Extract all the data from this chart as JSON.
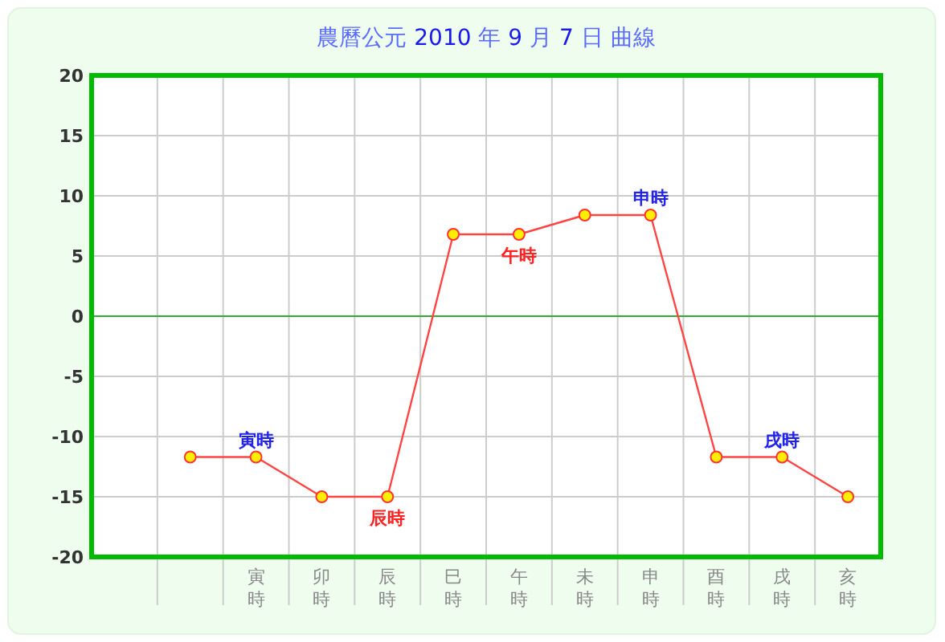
{
  "chart_data": {
    "type": "line",
    "title": "農曆公元 2010 年 9 月 7 日 曲線",
    "categories": [
      null,
      null,
      "寅時",
      "卯時",
      "辰時",
      "巳時",
      "午時",
      "未時",
      "申時",
      "酉時",
      "戌時",
      "亥時"
    ],
    "series": [
      {
        "color": "#ff4444",
        "values": [
          null,
          -11.7,
          -11.7,
          -15,
          -15,
          6.8,
          6.8,
          8.4,
          8.4,
          -11.7,
          -11.7,
          -15
        ]
      }
    ],
    "ylim": [
      -20,
      20
    ],
    "yticks": [
      -20,
      -15,
      -10,
      -5,
      0,
      5,
      10,
      15,
      20
    ],
    "grid": true,
    "marker": "circle",
    "ref_lines": [
      {
        "axis": "y",
        "value": 0,
        "color": "#33aa33"
      }
    ],
    "annotations": [
      {
        "text": "寅時",
        "x": "寅時",
        "y": -11.7
      },
      {
        "text": "辰時",
        "x": "辰時",
        "y": -15
      },
      {
        "text": "午時",
        "x": "午時",
        "y": 6.8
      },
      {
        "text": "申時",
        "x": "申時",
        "y": 8.4
      },
      {
        "text": "戌時",
        "x": "戌時",
        "y": -11.7
      }
    ]
  }
}
